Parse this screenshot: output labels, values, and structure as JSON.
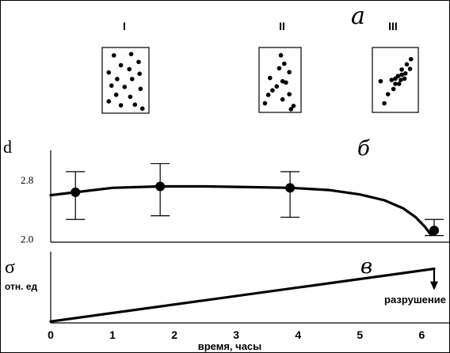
{
  "figure": {
    "panel_labels": {
      "a": "а",
      "b": "б",
      "c": "в"
    },
    "dist_titles": [
      "I",
      "II",
      "III"
    ],
    "dist_points": [
      [
        [
          0.25,
          0.12
        ],
        [
          0.62,
          0.1
        ],
        [
          0.78,
          0.22
        ],
        [
          0.4,
          0.27
        ],
        [
          0.58,
          0.33
        ],
        [
          0.14,
          0.38
        ],
        [
          0.8,
          0.4
        ],
        [
          0.32,
          0.48
        ],
        [
          0.64,
          0.48
        ],
        [
          0.2,
          0.58
        ],
        [
          0.48,
          0.6
        ],
        [
          0.82,
          0.63
        ],
        [
          0.3,
          0.72
        ],
        [
          0.6,
          0.75
        ],
        [
          0.14,
          0.82
        ],
        [
          0.4,
          0.88
        ],
        [
          0.7,
          0.87
        ],
        [
          0.86,
          0.93
        ]
      ],
      [
        [
          0.52,
          0.12
        ],
        [
          0.6,
          0.25
        ],
        [
          0.48,
          0.32
        ],
        [
          0.72,
          0.38
        ],
        [
          0.26,
          0.47
        ],
        [
          0.56,
          0.52
        ],
        [
          0.64,
          0.54
        ],
        [
          0.42,
          0.6
        ],
        [
          0.32,
          0.66
        ],
        [
          0.22,
          0.73
        ],
        [
          0.72,
          0.72
        ],
        [
          0.56,
          0.8
        ],
        [
          0.14,
          0.86
        ],
        [
          0.82,
          0.9
        ],
        [
          0.76,
          0.95
        ]
      ],
      [
        [
          0.84,
          0.18
        ],
        [
          0.75,
          0.26
        ],
        [
          0.64,
          0.34
        ],
        [
          0.82,
          0.33
        ],
        [
          0.72,
          0.4
        ],
        [
          0.56,
          0.44
        ],
        [
          0.62,
          0.5
        ],
        [
          0.7,
          0.48
        ],
        [
          0.42,
          0.5
        ],
        [
          0.5,
          0.56
        ],
        [
          0.58,
          0.56
        ],
        [
          0.18,
          0.52
        ],
        [
          0.46,
          0.64
        ],
        [
          0.34,
          0.72
        ],
        [
          0.26,
          0.86
        ],
        [
          0.64,
          0.42
        ],
        [
          0.5,
          0.48
        ]
      ]
    ]
  },
  "chart_data": [
    {
      "type": "line",
      "title": "",
      "ylabel": "d",
      "y_ticks": [
        "2.8",
        "2.0"
      ],
      "y_tick_values": [
        2.8,
        2.0
      ],
      "ylim": [
        1.95,
        3.2
      ],
      "xlim": [
        0,
        6.6
      ],
      "curve": [
        [
          0,
          2.59
        ],
        [
          0.4,
          2.63
        ],
        [
          1.0,
          2.69
        ],
        [
          1.77,
          2.71
        ],
        [
          2.5,
          2.71
        ],
        [
          3.2,
          2.7
        ],
        [
          3.87,
          2.69
        ],
        [
          4.5,
          2.66
        ],
        [
          5.0,
          2.6
        ],
        [
          5.4,
          2.52
        ],
        [
          5.7,
          2.41
        ],
        [
          5.9,
          2.29
        ],
        [
          6.05,
          2.16
        ],
        [
          6.15,
          2.05
        ]
      ],
      "points": [
        {
          "x": 0.4,
          "y": 2.63,
          "err_low": 2.26,
          "err_high": 2.91
        },
        {
          "x": 1.77,
          "y": 2.71,
          "err_low": 2.31,
          "err_high": 3.02
        },
        {
          "x": 3.87,
          "y": 2.69,
          "err_low": 2.29,
          "err_high": 2.91
        },
        {
          "x": 6.2,
          "y": 2.11,
          "err_low": 2.04,
          "err_high": 2.26
        }
      ]
    },
    {
      "type": "line",
      "title": "",
      "ylabel": "σ",
      "ylabel_unit": "отн. ед",
      "xlabel": "время, часы",
      "x_ticks": [
        "0",
        "1",
        "2",
        "3",
        "4",
        "5",
        "6"
      ],
      "x_tick_values": [
        0,
        1,
        2,
        3,
        4,
        5,
        6
      ],
      "xlim": [
        0,
        6.6
      ],
      "ylim": [
        0,
        1
      ],
      "line": [
        [
          0,
          0.02
        ],
        [
          6.2,
          0.76
        ]
      ],
      "annotation": {
        "text": "разрушение",
        "x": 6.2
      }
    }
  ]
}
